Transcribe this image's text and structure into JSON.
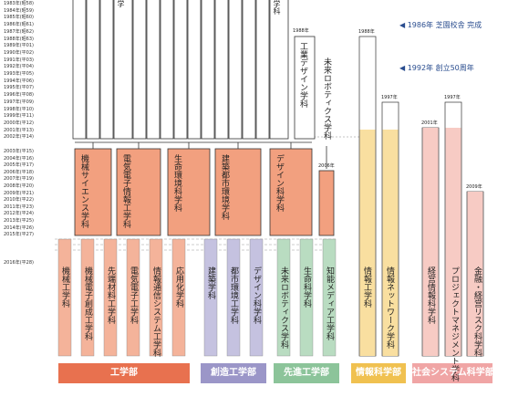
{
  "years": [
    "1983年(昭58)",
    "1984年(昭59)",
    "1985年(昭60)",
    "1986年(昭61)",
    "1987年(昭62)",
    "1988年(昭63)",
    "1989年(平01)",
    "1990年(平02)",
    "1991年(平03)",
    "1992年(平04)",
    "1993年(平05)",
    "1994年(平06)",
    "1995年(平07)",
    "1996年(平08)",
    "1997年(平09)",
    "1998年(平10)",
    "1999年(平11)",
    "2000年(平12)",
    "2001年(平13)",
    "2002年(平14)",
    "2003年(平15)",
    "2004年(平16)",
    "2005年(平17)",
    "2006年(平18)",
    "2007年(平19)",
    "2008年(平20)",
    "2009年(平21)",
    "2010年(平22)",
    "2011年(平23)",
    "2012年(平24)",
    "2013年(平25)",
    "2014年(平26)",
    "2015年(平27)",
    "2016年(平28)"
  ],
  "top_fragments": [
    "学",
    "学科"
  ],
  "early_departments": [
    {
      "year": "1988年",
      "name": "工業デザイン学科"
    },
    {
      "name": "未来ロボティクス学科"
    }
  ],
  "notes": [
    "◀ 1986年 芝園校舎 完成",
    "◀ 1992年 創立50周年"
  ],
  "restructured_2003": [
    "機械サイエンス学科",
    "電気電子情報工学科",
    "生命環境科学科",
    "建築都市環境学科",
    "デザイン科学科"
  ],
  "added_2006": "2006年",
  "faculties": [
    {
      "name": "工学部",
      "departments": [
        "機械工学科",
        "機械電子創成工学科",
        "先端材料工学科",
        "電気電子工学科",
        "情報通信システム工学科",
        "応用化学科"
      ]
    },
    {
      "name": "創造工学部",
      "departments": [
        "建築学科",
        "都市環境工学科",
        "デザイン科学科"
      ]
    },
    {
      "name": "先進工学部",
      "departments": [
        "未来ロボティクス学科",
        "生命科学科",
        "知能メディア工学科"
      ]
    },
    {
      "name": "情報科学部",
      "column_years": [
        "1988年",
        "1997年"
      ],
      "departments": [
        "情報工学科",
        "情報ネットワーク学科"
      ]
    },
    {
      "name": "社会システム科学部",
      "column_years": [
        "2001年",
        "1997年",
        "2009年"
      ],
      "departments": [
        "経営情報科学科",
        "プロジェクトマネジメント学科",
        "金融・経営リスク科学科"
      ]
    }
  ]
}
